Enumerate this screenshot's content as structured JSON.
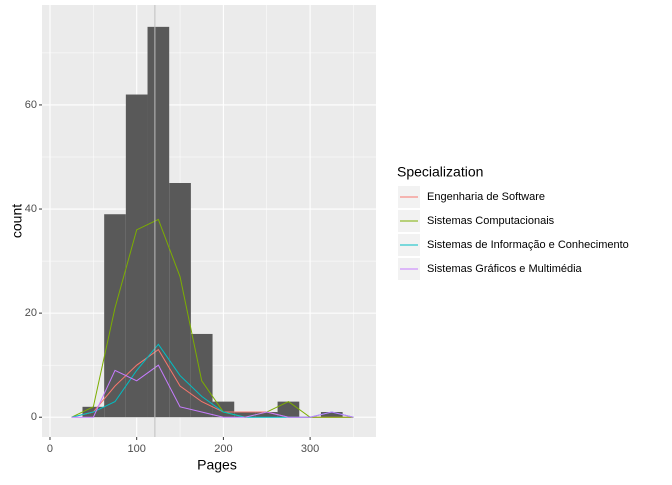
{
  "chart_data": {
    "type": "histogram",
    "x_label": "Pages",
    "y_label": "count",
    "bins": [
      37.5,
      62.5,
      87.5,
      112.5,
      137.5,
      162.5,
      187.5,
      212.5,
      237.5,
      262.5,
      287.5,
      312.5,
      337.5
    ],
    "counts": [
      2,
      39,
      62,
      75,
      45,
      16,
      3,
      1,
      1,
      3,
      0,
      1
    ],
    "bar_color": "#595959",
    "polygon_x": [
      25,
      50,
      75,
      100,
      125,
      150,
      175,
      200,
      225,
      250,
      275,
      300,
      325,
      350
    ],
    "series": [
      {
        "name": "Engenharia de Software",
        "color": "#F8766D",
        "values": [
          0,
          1,
          6,
          10,
          13,
          6,
          3,
          1,
          1,
          1,
          0,
          0,
          0,
          0
        ]
      },
      {
        "name": "Sistemas Computacionais",
        "color": "#7CAE00",
        "values": [
          0,
          2,
          21,
          36,
          38,
          27,
          7,
          1,
          0,
          1,
          3,
          0,
          0,
          0
        ]
      },
      {
        "name": "Sistemas de Informação e Conhecimento",
        "color": "#00BFC4",
        "values": [
          0,
          1,
          3,
          9,
          14,
          8,
          4,
          1,
          0,
          0,
          0,
          0,
          1,
          0
        ]
      },
      {
        "name": "Sistemas Gráficos e Multimédia",
        "color": "#C77CFF",
        "values": [
          0,
          0,
          9,
          7,
          10,
          2,
          1,
          0,
          0,
          1,
          0,
          0,
          1,
          0
        ]
      }
    ],
    "vline": 121,
    "legend_title": "Specialization",
    "xlim": [
      -9.2,
      376
    ],
    "ylim": [
      -3.8,
      79.2
    ],
    "xticks": [
      0,
      100,
      200,
      300
    ],
    "yticks": [
      0,
      20,
      40,
      60
    ],
    "grid": true
  }
}
